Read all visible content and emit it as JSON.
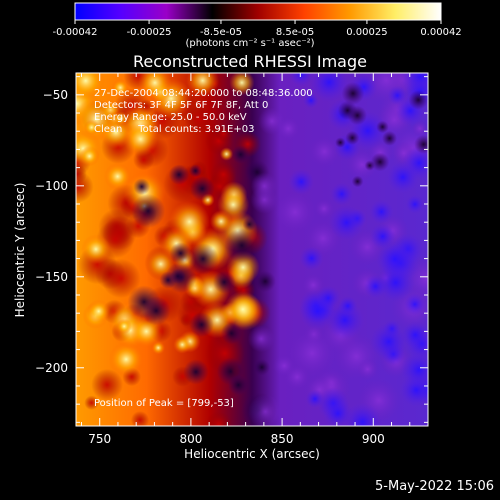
{
  "colorbar": {
    "tick_labels": [
      "-0.00042",
      "-0.00025",
      "-8.5e-05",
      "8.5e-05",
      "0.00025",
      "0.00042"
    ],
    "units": "(photons cm⁻² s⁻¹ asec⁻²)",
    "range": [
      -0.00042,
      0.00042
    ],
    "colors": [
      "#0000ff",
      "#5500ff",
      "#9a00c8",
      "#000000",
      "#a00000",
      "#ff4000",
      "#ff9900",
      "#ffee66",
      "#ffffff"
    ]
  },
  "annotations": {
    "line1": "27-Dec-2004 08:44:20.000 to 08:48:36.000",
    "line2": "Detectors: 3F 4F 5F 6F 7F 8F, Att 0",
    "line3": "Energy Range: 25.0 - 50.0 keV",
    "line4": "Clean     Total counts: 3.91E+03",
    "peak": "Position of Peak = [799,-53]"
  },
  "footer": {
    "date": "5-May-2022 15:06"
  },
  "chart_data": {
    "type": "heatmap",
    "title": "Reconstructed RHESSI Image",
    "xlabel": "Heliocentric X (arcsec)",
    "ylabel": "Heliocentric Y (arcsec)",
    "xlim": [
      737,
      930
    ],
    "ylim": [
      -232,
      -38
    ],
    "xticks": [
      750,
      800,
      850,
      900
    ],
    "yticks": [
      -50,
      -100,
      -150,
      -200
    ],
    "xtick_labels": [
      "750",
      "800",
      "850",
      "900"
    ],
    "ytick_labels": [
      "−50",
      "−100",
      "−150",
      "−200"
    ],
    "peak_position": [
      799,
      -53
    ]
  }
}
